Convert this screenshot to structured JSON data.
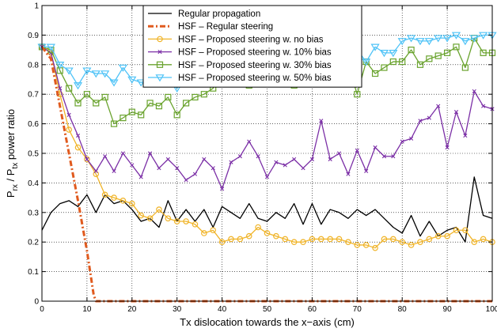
{
  "chart_data": {
    "type": "line",
    "xlabel": "Tx dislocation towards the x−axis (cm)",
    "ylabel": {
      "base1": "P",
      "sub1": "rx",
      "mid": " / P",
      "sub2": "tx",
      "tail": " power ratio"
    },
    "xlim": [
      0,
      100
    ],
    "ylim": [
      0,
      1
    ],
    "x_ticks": [
      0,
      10,
      20,
      30,
      40,
      50,
      60,
      70,
      80,
      90,
      100
    ],
    "y_ticks": [
      0,
      0.1,
      0.2,
      0.3,
      0.4,
      0.5,
      0.6,
      0.7,
      0.8,
      0.9,
      1
    ],
    "y_tick_labels": [
      "0",
      "0.1",
      "0.2",
      "0.3",
      "0.4",
      "0.5",
      "0.6",
      "0.7",
      "0.8",
      "0.9",
      "1"
    ],
    "grid": true,
    "legend_position": "top-center",
    "series": [
      {
        "name": "Regular propagation",
        "color": "#000000",
        "marker": "none",
        "dash": "solid",
        "x": [
          0,
          2,
          4,
          6,
          8,
          10,
          12,
          14,
          16,
          18,
          20,
          22,
          24,
          26,
          28,
          30,
          32,
          34,
          36,
          38,
          40,
          42,
          44,
          46,
          48,
          50,
          52,
          54,
          56,
          58,
          60,
          62,
          64,
          66,
          68,
          70,
          72,
          74,
          76,
          78,
          80,
          82,
          84,
          86,
          88,
          90,
          92,
          94,
          96,
          98,
          100
        ],
        "y": [
          0.24,
          0.3,
          0.33,
          0.34,
          0.32,
          0.36,
          0.3,
          0.36,
          0.33,
          0.34,
          0.31,
          0.27,
          0.28,
          0.25,
          0.34,
          0.27,
          0.31,
          0.27,
          0.31,
          0.25,
          0.32,
          0.3,
          0.28,
          0.33,
          0.28,
          0.27,
          0.3,
          0.28,
          0.33,
          0.26,
          0.33,
          0.26,
          0.31,
          0.3,
          0.28,
          0.31,
          0.29,
          0.31,
          0.28,
          0.25,
          0.23,
          0.29,
          0.22,
          0.27,
          0.22,
          0.24,
          0.25,
          0.2,
          0.42,
          0.29,
          0.28
        ]
      },
      {
        "name": "HSF – Regular steering",
        "color": "#e05a1e",
        "marker": "none",
        "dash": "dashdot",
        "x": [
          0,
          2,
          4,
          6,
          8,
          10,
          11.5,
          12,
          14,
          16,
          18,
          20,
          22,
          24,
          26,
          28,
          30,
          32,
          34,
          36,
          38,
          40,
          42,
          44,
          46,
          48,
          50,
          52,
          54,
          56,
          58,
          60,
          62,
          64,
          66,
          68,
          70,
          72,
          74,
          76,
          78,
          80,
          82,
          84,
          86,
          88,
          90,
          92,
          94,
          96,
          98,
          100
        ],
        "y": [
          0.86,
          0.82,
          0.66,
          0.5,
          0.34,
          0.17,
          0.02,
          0.0,
          0,
          0,
          0,
          0,
          0,
          0,
          0,
          0,
          0,
          0,
          0,
          0,
          0,
          0,
          0,
          0,
          0,
          0,
          0,
          0,
          0,
          0,
          0,
          0,
          0,
          0,
          0,
          0,
          0,
          0,
          0,
          0,
          0,
          0,
          0,
          0,
          0,
          0,
          0,
          0,
          0,
          0,
          0,
          0
        ]
      },
      {
        "name": "HSF – Proposed steering w. no bias",
        "color": "#f0b429",
        "marker": "circle",
        "dash": "solid",
        "x": [
          0,
          2,
          4,
          6,
          8,
          10,
          12,
          14,
          16,
          18,
          20,
          22,
          24,
          26,
          28,
          30,
          32,
          34,
          36,
          38,
          40,
          42,
          44,
          46,
          48,
          50,
          52,
          54,
          56,
          58,
          60,
          62,
          64,
          66,
          68,
          70,
          72,
          74,
          76,
          78,
          80,
          82,
          84,
          86,
          88,
          90,
          92,
          94,
          96,
          98,
          100
        ],
        "y": [
          0.86,
          0.84,
          0.7,
          0.58,
          0.52,
          0.48,
          0.43,
          0.36,
          0.35,
          0.34,
          0.33,
          0.29,
          0.28,
          0.31,
          0.28,
          0.27,
          0.27,
          0.26,
          0.23,
          0.24,
          0.2,
          0.21,
          0.21,
          0.22,
          0.25,
          0.23,
          0.22,
          0.21,
          0.2,
          0.2,
          0.21,
          0.21,
          0.21,
          0.21,
          0.2,
          0.19,
          0.19,
          0.18,
          0.21,
          0.21,
          0.2,
          0.19,
          0.2,
          0.21,
          0.22,
          0.22,
          0.24,
          0.24,
          0.2,
          0.21,
          0.2
        ]
      },
      {
        "name": "HSF – Proposed steering w. 10% bias",
        "color": "#7b2fa6",
        "marker": "x",
        "dash": "solid",
        "x": [
          0,
          2,
          4,
          6,
          8,
          10,
          12,
          14,
          16,
          18,
          20,
          22,
          24,
          26,
          28,
          30,
          32,
          34,
          36,
          38,
          40,
          42,
          44,
          46,
          48,
          50,
          52,
          54,
          56,
          58,
          60,
          62,
          64,
          66,
          68,
          70,
          72,
          74,
          76,
          78,
          80,
          82,
          84,
          86,
          88,
          90,
          92,
          94,
          96,
          98,
          100
        ],
        "y": [
          0.86,
          0.84,
          0.72,
          0.63,
          0.56,
          0.48,
          0.44,
          0.49,
          0.44,
          0.5,
          0.46,
          0.42,
          0.5,
          0.45,
          0.48,
          0.45,
          0.41,
          0.43,
          0.48,
          0.45,
          0.38,
          0.47,
          0.49,
          0.54,
          0.49,
          0.42,
          0.47,
          0.46,
          0.48,
          0.45,
          0.48,
          0.61,
          0.48,
          0.5,
          0.43,
          0.51,
          0.44,
          0.52,
          0.49,
          0.49,
          0.54,
          0.55,
          0.61,
          0.62,
          0.66,
          0.52,
          0.64,
          0.56,
          0.71,
          0.66,
          0.65
        ]
      },
      {
        "name": "HSF – Proposed steering w. 30% bias",
        "color": "#6aa32e",
        "marker": "square",
        "dash": "solid",
        "x": [
          0,
          2,
          4,
          6,
          8,
          10,
          12,
          14,
          16,
          18,
          20,
          22,
          24,
          26,
          28,
          30,
          32,
          34,
          36,
          38,
          40,
          42,
          44,
          46,
          48,
          50,
          52,
          54,
          56,
          58,
          60,
          62,
          64,
          66,
          68,
          70,
          72,
          74,
          76,
          78,
          80,
          82,
          84,
          86,
          88,
          90,
          92,
          94,
          96,
          98,
          100
        ],
        "y": [
          0.86,
          0.85,
          0.78,
          0.72,
          0.67,
          0.7,
          0.67,
          0.69,
          0.6,
          0.62,
          0.64,
          0.63,
          0.67,
          0.66,
          0.69,
          0.63,
          0.67,
          0.69,
          0.7,
          0.72,
          0.78,
          0.76,
          0.75,
          0.73,
          0.78,
          0.76,
          0.77,
          0.75,
          0.73,
          0.8,
          0.79,
          0.76,
          0.78,
          0.79,
          0.8,
          0.7,
          0.81,
          0.77,
          0.79,
          0.81,
          0.81,
          0.85,
          0.8,
          0.82,
          0.83,
          0.84,
          0.86,
          0.79,
          0.89,
          0.84,
          0.84
        ]
      },
      {
        "name": "HSF – Proposed steering w. 50% bias",
        "color": "#4fc3f7",
        "marker": "triangle-down",
        "dash": "solid",
        "x": [
          0,
          2,
          4,
          6,
          8,
          10,
          12,
          14,
          16,
          18,
          20,
          22,
          24,
          26,
          28,
          30,
          32,
          34,
          36,
          38,
          40,
          42,
          44,
          46,
          48,
          50,
          52,
          54,
          56,
          58,
          60,
          62,
          64,
          66,
          68,
          70,
          72,
          74,
          76,
          78,
          80,
          82,
          84,
          86,
          88,
          90,
          92,
          94,
          96,
          98,
          100
        ],
        "y": [
          0.86,
          0.86,
          0.8,
          0.78,
          0.73,
          0.78,
          0.77,
          0.77,
          0.74,
          0.79,
          0.75,
          0.74,
          0.75,
          0.79,
          0.75,
          0.72,
          0.78,
          0.79,
          0.79,
          0.78,
          0.81,
          0.8,
          0.81,
          0.82,
          0.79,
          0.79,
          0.82,
          0.81,
          0.81,
          0.84,
          0.83,
          0.82,
          0.84,
          0.85,
          0.85,
          0.85,
          0.81,
          0.86,
          0.84,
          0.84,
          0.88,
          0.89,
          0.88,
          0.88,
          0.89,
          0.89,
          0.9,
          0.88,
          0.89,
          0.9,
          0.9
        ]
      }
    ]
  }
}
